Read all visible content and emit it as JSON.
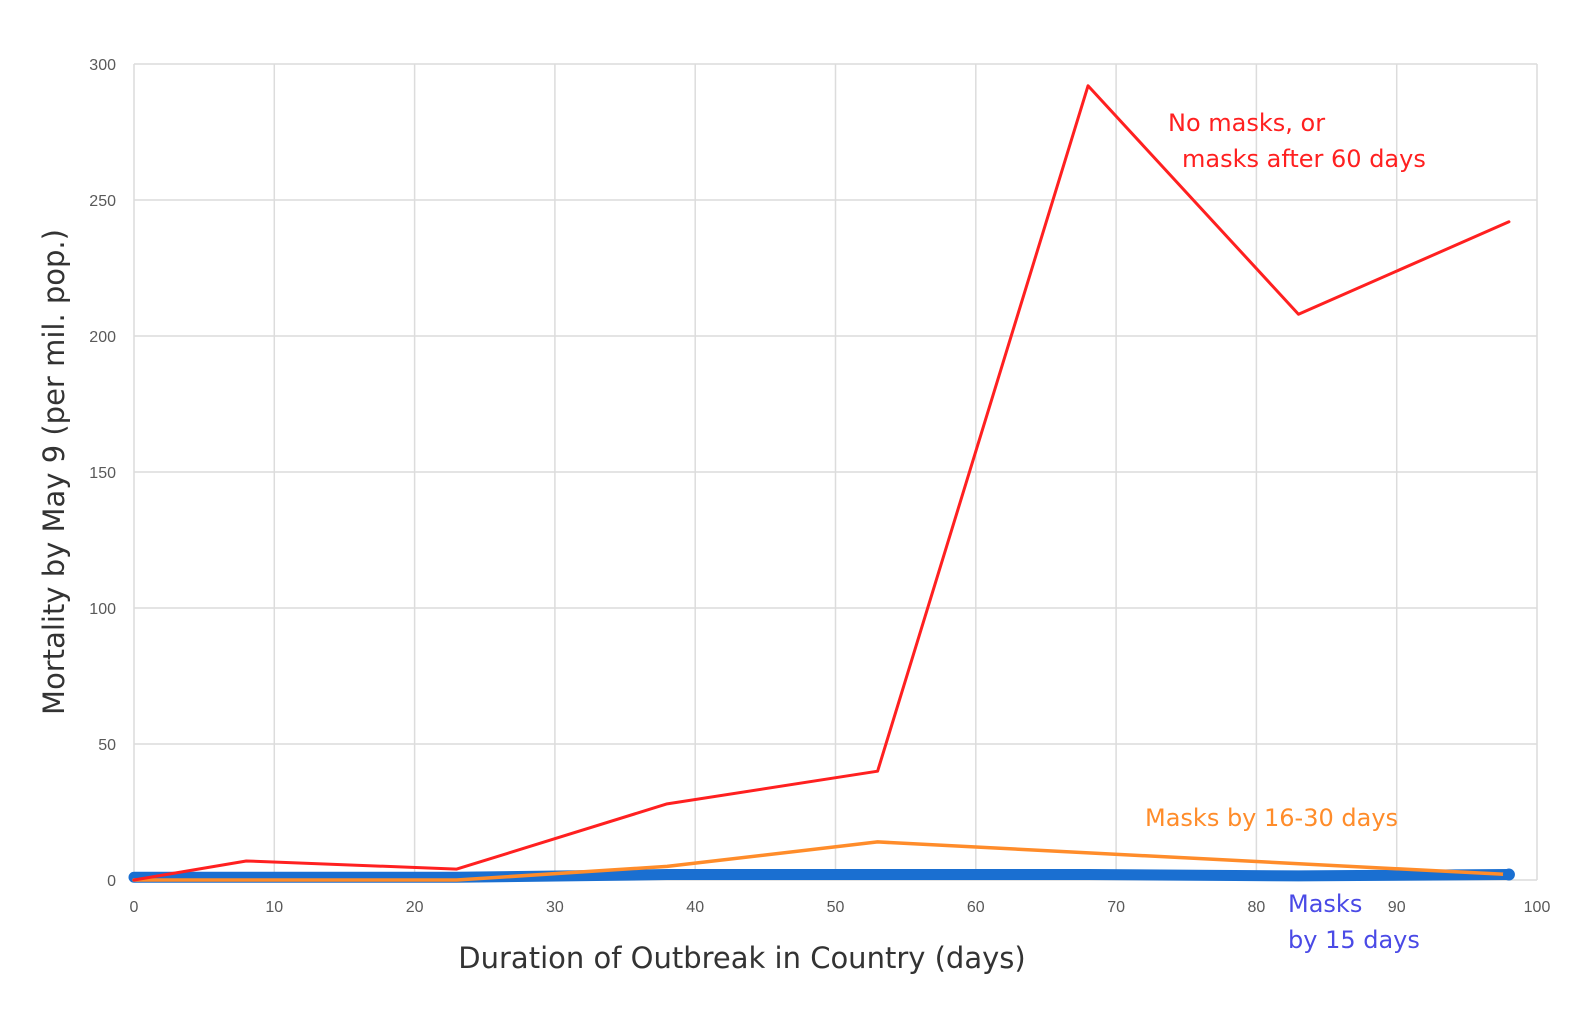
{
  "chart_data": {
    "type": "line",
    "title": "",
    "xlabel": "Duration of Outbreak in Country (days)",
    "ylabel": "Mortality by May 9 (per mil. pop.)",
    "xlim": [
      0,
      100
    ],
    "ylim": [
      0,
      300
    ],
    "x_ticks": [
      0,
      10,
      20,
      30,
      40,
      50,
      60,
      70,
      80,
      90,
      100
    ],
    "y_ticks": [
      0,
      50,
      100,
      150,
      200,
      250,
      300
    ],
    "grid": true,
    "legend": "none",
    "series": [
      {
        "label_lines": [
          "No masks, or",
          "masks after 60 days"
        ],
        "color": "#ff2020",
        "points": [
          [
            0,
            0
          ],
          [
            8,
            7
          ],
          [
            23,
            4
          ],
          [
            38,
            28
          ],
          [
            53,
            40
          ],
          [
            68,
            292
          ],
          [
            83,
            208
          ],
          [
            98,
            242
          ]
        ]
      },
      {
        "label_lines": [
          "Masks by 16-30 days"
        ],
        "color": "#ff8c2a",
        "points": [
          [
            0,
            0
          ],
          [
            23,
            0
          ],
          [
            38,
            5
          ],
          [
            53,
            14
          ],
          [
            98,
            2
          ]
        ]
      },
      {
        "label_lines": [
          "Masks",
          "by 15 days"
        ],
        "color": "#1a6fd1",
        "label_color": "#4a4ae6",
        "points": [
          [
            0,
            1
          ],
          [
            23,
            1
          ],
          [
            38,
            2
          ],
          [
            53,
            2
          ],
          [
            68,
            2
          ],
          [
            83,
            1.5
          ],
          [
            98,
            2
          ]
        ]
      }
    ]
  }
}
